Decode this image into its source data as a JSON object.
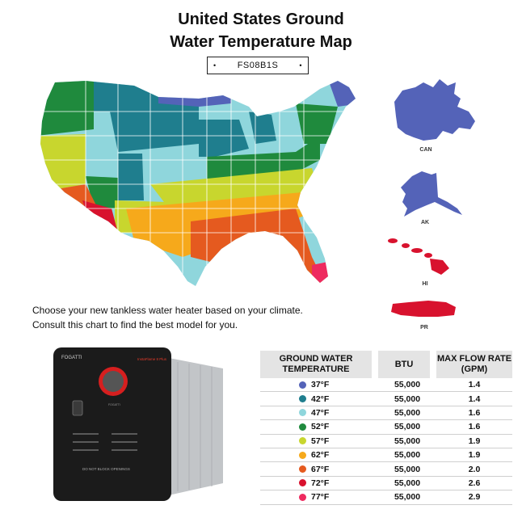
{
  "header": {
    "title_line1": "United States Ground",
    "title_line2": "Water Temperature Map",
    "model": "FS08B1S",
    "bullet": "•"
  },
  "caption": {
    "line1": "Choose your new tankless water heater based on your climate.",
    "line2": "Consult this chart to find the best model for you."
  },
  "insets": {
    "canada": {
      "label": "CAN",
      "color": "#5463b8"
    },
    "alaska": {
      "label": "AK",
      "color": "#5463b8"
    },
    "hawaii": {
      "label": "HI",
      "color": "#d8122e"
    },
    "puerto_rico": {
      "label": "PR",
      "color": "#d8122e"
    }
  },
  "map": {
    "color_scale": {
      "37": "#5463b8",
      "42": "#1f7e8e",
      "47": "#8fd6dc",
      "52": "#1f8a3d",
      "57": "#c8d62e",
      "62": "#f6a91b",
      "67": "#e55a1f",
      "72": "#d8122e",
      "77": "#ee2a5f"
    }
  },
  "product": {
    "brand": "FOGATTI",
    "badge": "InstaFlame 8 Plus",
    "small_label": "FOGATTI",
    "bottom_text": "DO NOT BLOCK OPENINGS"
  },
  "table": {
    "headers": [
      "GROUND WATER TEMPERATURE",
      "BTU",
      "MAX FLOW RATE (GPM)"
    ],
    "rows": [
      {
        "temp": "37°F",
        "btu": "55,000",
        "gpm": "1.4",
        "color": "#5463b8"
      },
      {
        "temp": "42°F",
        "btu": "55,000",
        "gpm": "1.4",
        "color": "#1f7e8e"
      },
      {
        "temp": "47°F",
        "btu": "55,000",
        "gpm": "1.6",
        "color": "#8fd6dc"
      },
      {
        "temp": "52°F",
        "btu": "55,000",
        "gpm": "1.6",
        "color": "#1f8a3d"
      },
      {
        "temp": "57°F",
        "btu": "55,000",
        "gpm": "1.9",
        "color": "#c8d62e"
      },
      {
        "temp": "62°F",
        "btu": "55,000",
        "gpm": "1.9",
        "color": "#f6a91b"
      },
      {
        "temp": "67°F",
        "btu": "55,000",
        "gpm": "2.0",
        "color": "#e55a1f"
      },
      {
        "temp": "72°F",
        "btu": "55,000",
        "gpm": "2.6",
        "color": "#d8122e"
      },
      {
        "temp": "77°F",
        "btu": "55,000",
        "gpm": "2.9",
        "color": "#ee2a5f"
      }
    ]
  }
}
